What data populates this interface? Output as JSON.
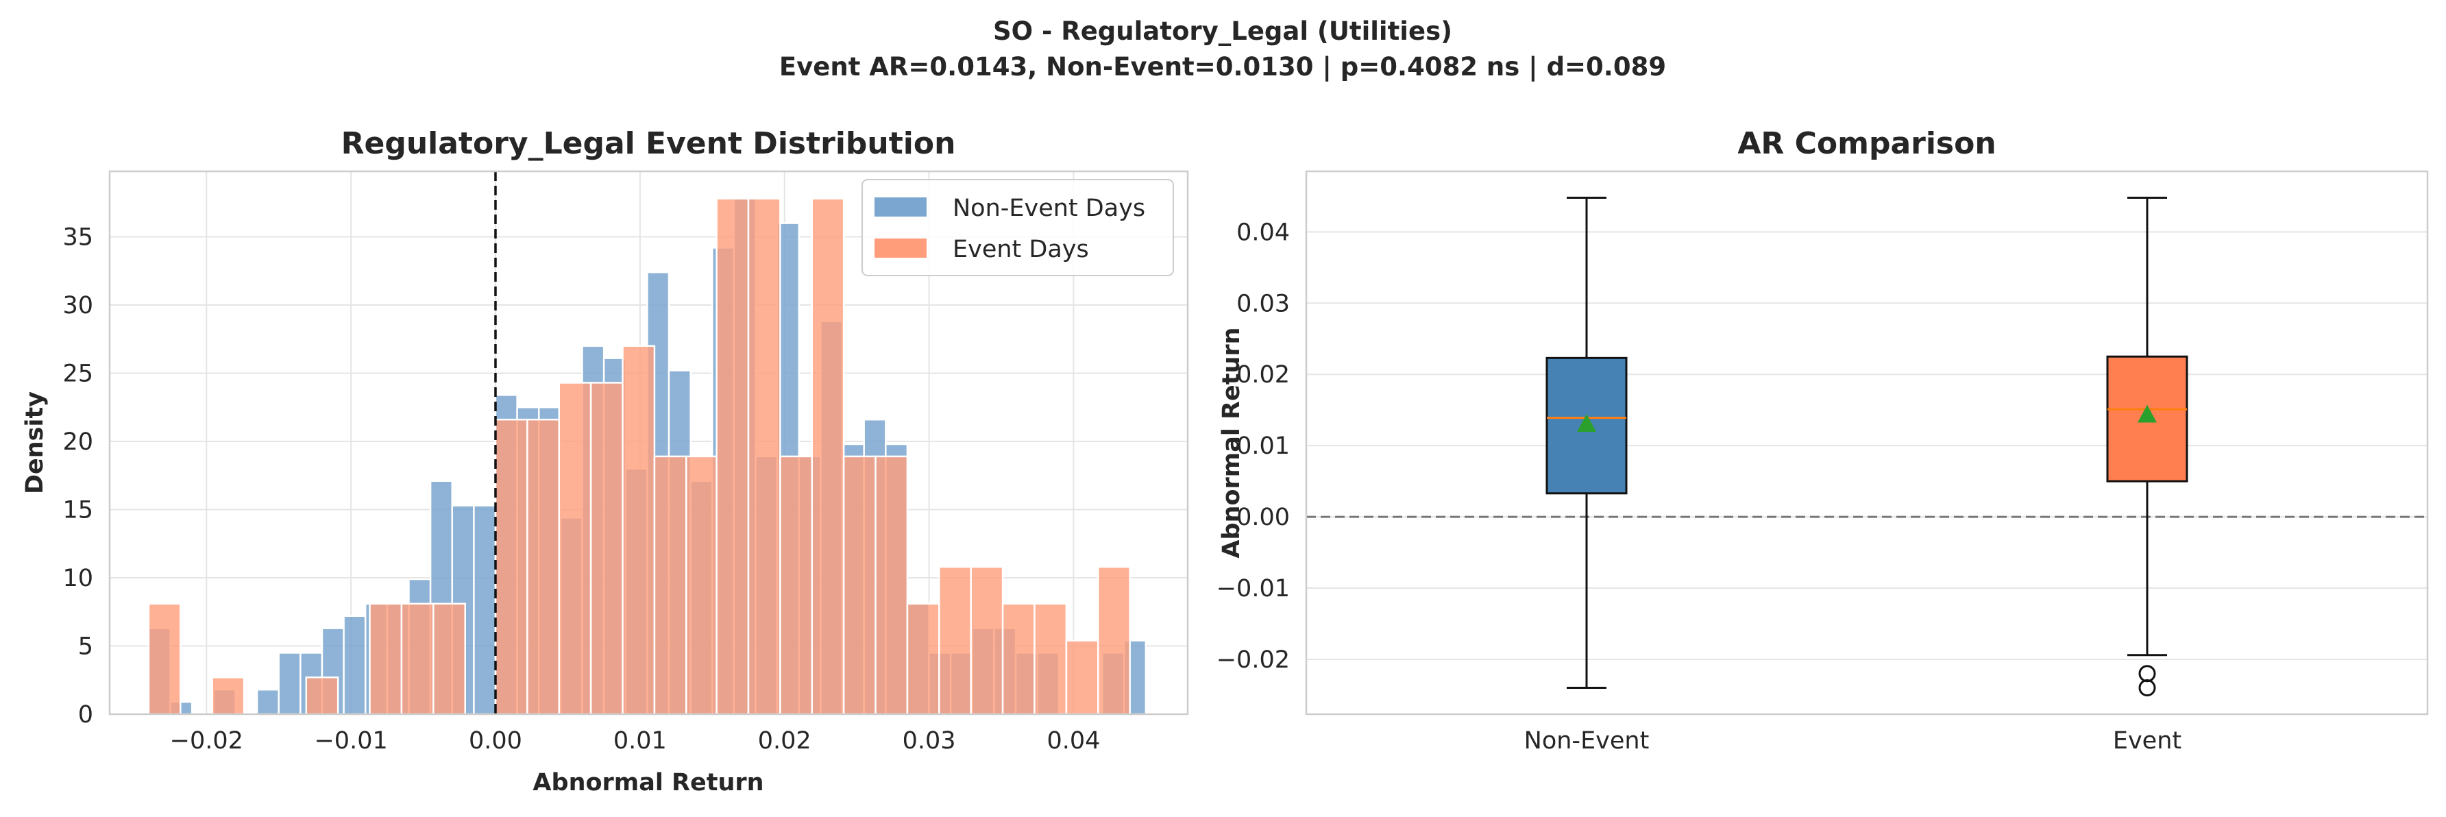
{
  "figure": {
    "suptitle_line1": "SO - Regulatory_Legal (Utilities)",
    "suptitle_line2": "Event AR=0.0143, Non-Event=0.0130 | p=0.4082 ns | d=0.089"
  },
  "chart_data": [
    {
      "type": "histogram",
      "title": "Regulatory_Legal Event Distribution",
      "xlabel": "Abnormal Return",
      "ylabel": "Density",
      "xlim": [
        -0.0267,
        0.0479
      ],
      "ylim": [
        0,
        39.8
      ],
      "xticks": [
        -0.02,
        -0.01,
        0.0,
        0.01,
        0.02,
        0.03,
        0.04
      ],
      "xtick_labels": [
        "−0.02",
        "−0.01",
        "0.00",
        "0.01",
        "0.02",
        "0.03",
        "0.04"
      ],
      "yticks": [
        0,
        5,
        10,
        15,
        20,
        25,
        30,
        35
      ],
      "ytick_labels": [
        "0",
        "5",
        "10",
        "15",
        "20",
        "25",
        "30",
        "35"
      ],
      "grid": true,
      "legend_position": "top-right",
      "reference_line": {
        "x": 0.0,
        "style": "dashed",
        "color": "#111111"
      },
      "series": [
        {
          "name": "Non-Event Days",
          "color": "#7aa6cf",
          "bin_edges": [
            -0.024,
            -0.0225,
            -0.021,
            -0.0195,
            -0.018,
            -0.0165,
            -0.015,
            -0.0135,
            -0.012,
            -0.0105,
            -0.009,
            -0.0075,
            -0.006,
            -0.0045,
            -0.003,
            -0.0015,
            0.0,
            0.0015,
            0.003,
            0.0045,
            0.006,
            0.0075,
            0.009,
            0.0105,
            0.012,
            0.0135,
            0.015,
            0.0165,
            0.018,
            0.0195,
            0.021,
            0.0225,
            0.024,
            0.0255,
            0.027,
            0.0285,
            0.03,
            0.0315,
            0.033,
            0.0345,
            0.036,
            0.0375,
            0.039,
            0.0405,
            0.042,
            0.0435,
            0.045
          ],
          "values": [
            6.3,
            0.9,
            0,
            1.8,
            0,
            1.8,
            4.5,
            4.5,
            6.3,
            7.2,
            8.1,
            8.1,
            9.9,
            17.1,
            15.3,
            15.3,
            23.4,
            22.5,
            22.5,
            14.4,
            27.0,
            26.1,
            18.0,
            32.4,
            25.2,
            17.1,
            34.2,
            37.8,
            18.9,
            36.0,
            18.9,
            28.8,
            19.8,
            21.6,
            19.8,
            8.1,
            4.5,
            4.5,
            6.3,
            6.3,
            4.5,
            4.5,
            0,
            0,
            4.5,
            5.4
          ]
        },
        {
          "name": "Event Days",
          "color": "#ff9d7a",
          "bin_edges": [
            -0.024,
            -0.0218,
            -0.0196,
            -0.0174,
            -0.0153,
            -0.0131,
            -0.0109,
            -0.0087,
            -0.0065,
            -0.0043,
            -0.0021,
            0.0,
            0.0022,
            0.0044,
            0.0066,
            0.0088,
            0.011,
            0.0132,
            0.0153,
            0.0175,
            0.0197,
            0.0219,
            0.0241,
            0.0263,
            0.0285,
            0.0307,
            0.0329,
            0.0351,
            0.0373,
            0.0395,
            0.0417,
            0.0439
          ],
          "values": [
            8.1,
            0,
            2.7,
            0,
            0,
            2.7,
            0,
            8.1,
            8.1,
            8.1,
            0,
            21.6,
            21.6,
            24.3,
            24.3,
            27.0,
            18.9,
            18.9,
            37.8,
            37.8,
            18.9,
            37.8,
            18.9,
            18.9,
            8.1,
            10.8,
            10.8,
            8.1,
            8.1,
            5.4,
            10.8
          ]
        }
      ]
    },
    {
      "type": "box",
      "title": "AR Comparison",
      "xlabel": "",
      "ylabel": "Abnormal Return",
      "ylim": [
        -0.0277,
        0.0485
      ],
      "categories": [
        "Non-Event",
        "Event"
      ],
      "yticks": [
        -0.02,
        -0.01,
        0.0,
        0.01,
        0.02,
        0.03,
        0.04
      ],
      "ytick_labels": [
        "−0.02",
        "−0.01",
        "0.00",
        "0.01",
        "0.02",
        "0.03",
        "0.04"
      ],
      "grid": true,
      "reference_line": {
        "y": 0.0,
        "style": "dashed",
        "color": "#777777"
      },
      "median_color": "#ff7f0e",
      "mean_color": "#2ca02c",
      "boxes": [
        {
          "category": "Non-Event",
          "color": "#4682b4",
          "whisker_low": -0.024,
          "q1": 0.0033,
          "median": 0.0139,
          "q3": 0.0223,
          "whisker_high": 0.0448,
          "mean": 0.013,
          "outliers": []
        },
        {
          "category": "Event",
          "color": "#ff7f50",
          "whisker_low": -0.0194,
          "q1": 0.005,
          "median": 0.0151,
          "q3": 0.0225,
          "whisker_high": 0.0448,
          "mean": 0.0143,
          "outliers": [
            -0.022,
            -0.024
          ]
        }
      ]
    }
  ]
}
